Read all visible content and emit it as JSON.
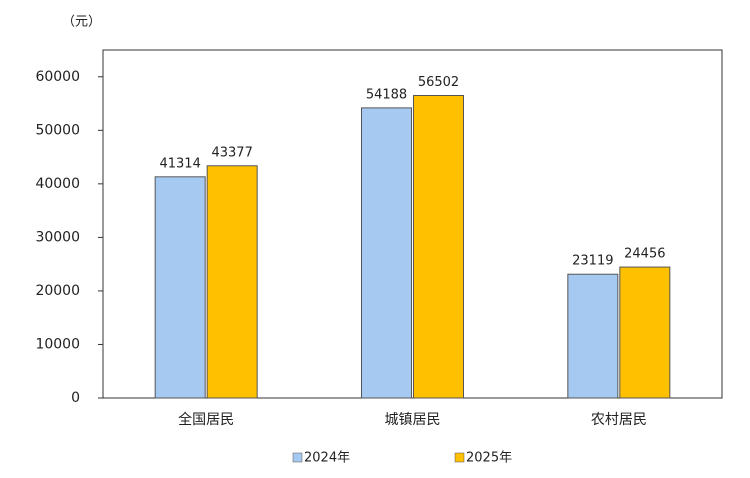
{
  "chart_data": {
    "type": "bar",
    "y_unit": "（元）",
    "categories": [
      "全国居民",
      "城镇居民",
      "农村居民"
    ],
    "series": [
      {
        "name": "2024年",
        "color": "#a6c9f2",
        "values": [
          41314,
          54188,
          23119
        ]
      },
      {
        "name": "2025年",
        "color": "#ffc000",
        "values": [
          43377,
          56502,
          24456
        ]
      }
    ],
    "ylim": [
      0,
      65000
    ],
    "yticks": [
      0,
      10000,
      20000,
      30000,
      40000,
      50000,
      60000
    ],
    "grid": false
  }
}
